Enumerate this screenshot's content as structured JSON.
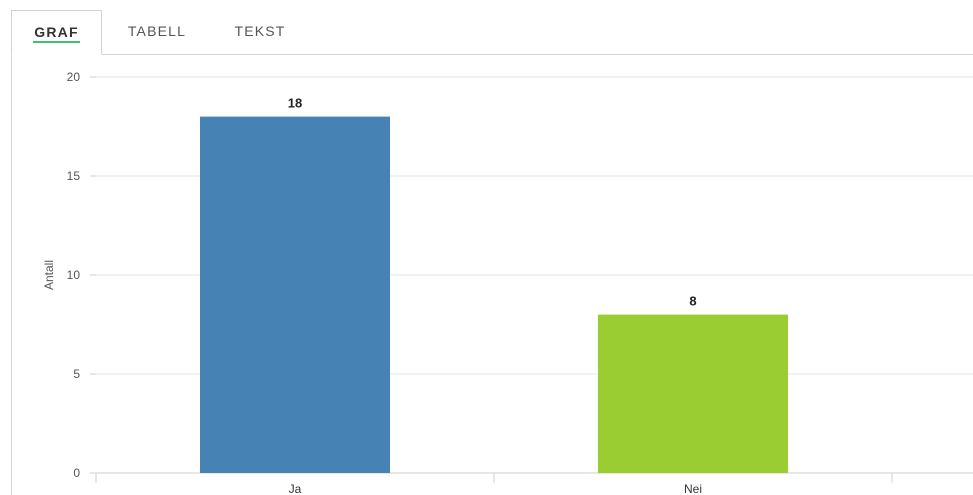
{
  "tabs": [
    {
      "label": "GRAF",
      "active": true
    },
    {
      "label": "TABELL",
      "active": false
    },
    {
      "label": "TEKST",
      "active": false
    }
  ],
  "colors": {
    "accent_underline": "#3cc07a",
    "bar_ja": "#4682b4",
    "bar_nei": "#9acd32"
  },
  "chart_data": {
    "type": "bar",
    "title": "",
    "xlabel": "",
    "ylabel": "Antall",
    "categories": [
      "Ja",
      "Nei"
    ],
    "values": [
      18,
      8
    ],
    "data_labels": [
      "18",
      "8"
    ],
    "bar_colors": [
      "#4682b4",
      "#9acd32"
    ],
    "ylim": [
      0,
      20
    ],
    "yticks": [
      0,
      5,
      10,
      15,
      20
    ],
    "grid": true,
    "legend": "none"
  }
}
